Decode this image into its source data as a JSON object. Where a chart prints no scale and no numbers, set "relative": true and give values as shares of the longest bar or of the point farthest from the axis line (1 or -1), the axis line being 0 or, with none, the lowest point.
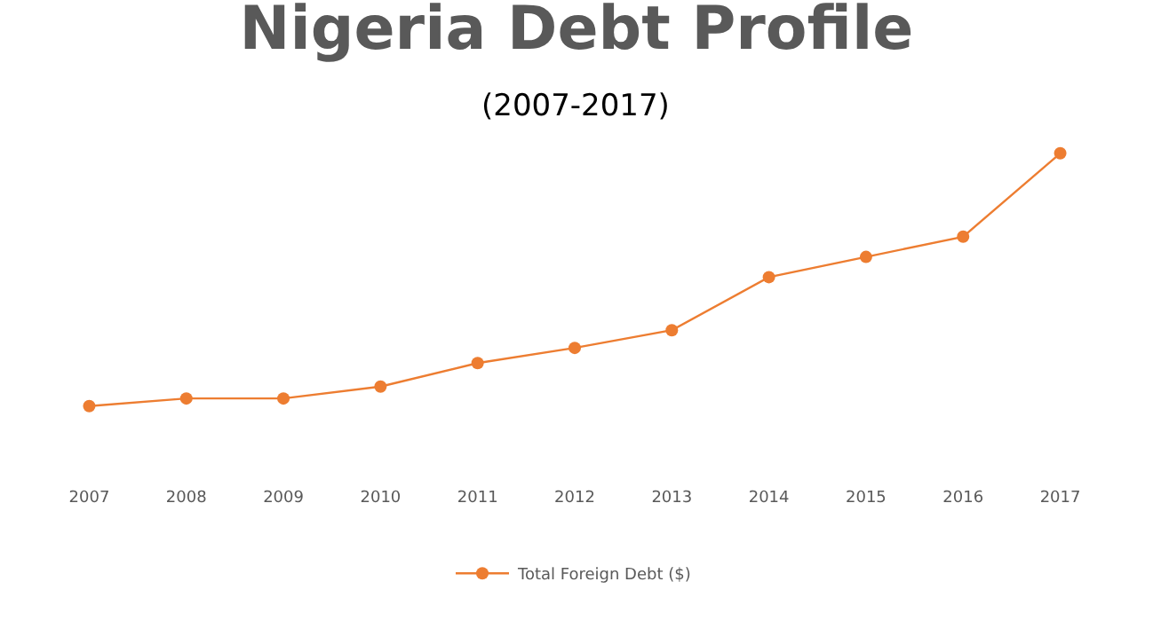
{
  "chart_data": {
    "type": "line",
    "title": "Nigeria Debt Profile",
    "subtitle": "(2007-2017)",
    "relative": true,
    "categories": [
      "2007",
      "2008",
      "2009",
      "2010",
      "2011",
      "2012",
      "2013",
      "2014",
      "2015",
      "2016",
      "2017"
    ],
    "series": [
      {
        "name": "Total Foreign Debt ($)",
        "color": "#ed7d31",
        "values": [
          0,
          0.03,
          0.03,
          0.077,
          0.17,
          0.23,
          0.3,
          0.51,
          0.59,
          0.67,
          1
        ]
      }
    ],
    "marker": "circle",
    "line_style": "solid",
    "grid": false,
    "legend": "bottom"
  }
}
